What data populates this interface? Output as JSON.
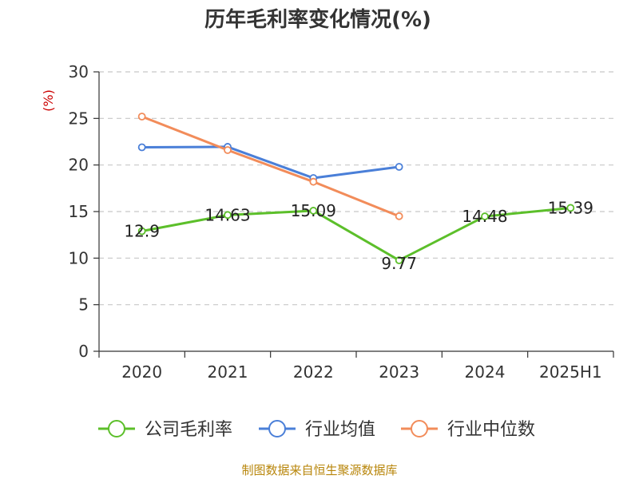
{
  "chart_data": {
    "type": "line",
    "title": "历年毛利率变化情况(%)",
    "ylabel": "(%)",
    "categories": [
      "2020",
      "2021",
      "2022",
      "2023",
      "2024",
      "2025H1"
    ],
    "ylim": [
      0,
      30
    ],
    "yticks": [
      0,
      5,
      10,
      15,
      20,
      25,
      30
    ],
    "grid": "horizontal-dashed",
    "legend_position": "bottom",
    "series": [
      {
        "name": "公司毛利率",
        "color": "#5cbf2a",
        "values": [
          12.9,
          14.63,
          15.09,
          9.77,
          14.48,
          15.39
        ],
        "labels": [
          "12.9",
          "14.63",
          "15.09",
          "9.77",
          "14.48",
          "15.39"
        ]
      },
      {
        "name": "行业均值",
        "color": "#4a7fd8",
        "values": [
          21.9,
          21.95,
          18.6,
          19.8,
          null,
          null
        ]
      },
      {
        "name": "行业中位数",
        "color": "#f28c5a",
        "values": [
          25.2,
          21.6,
          18.2,
          14.5,
          null,
          null
        ]
      }
    ],
    "source": "制图数据来自恒生聚源数据库"
  }
}
